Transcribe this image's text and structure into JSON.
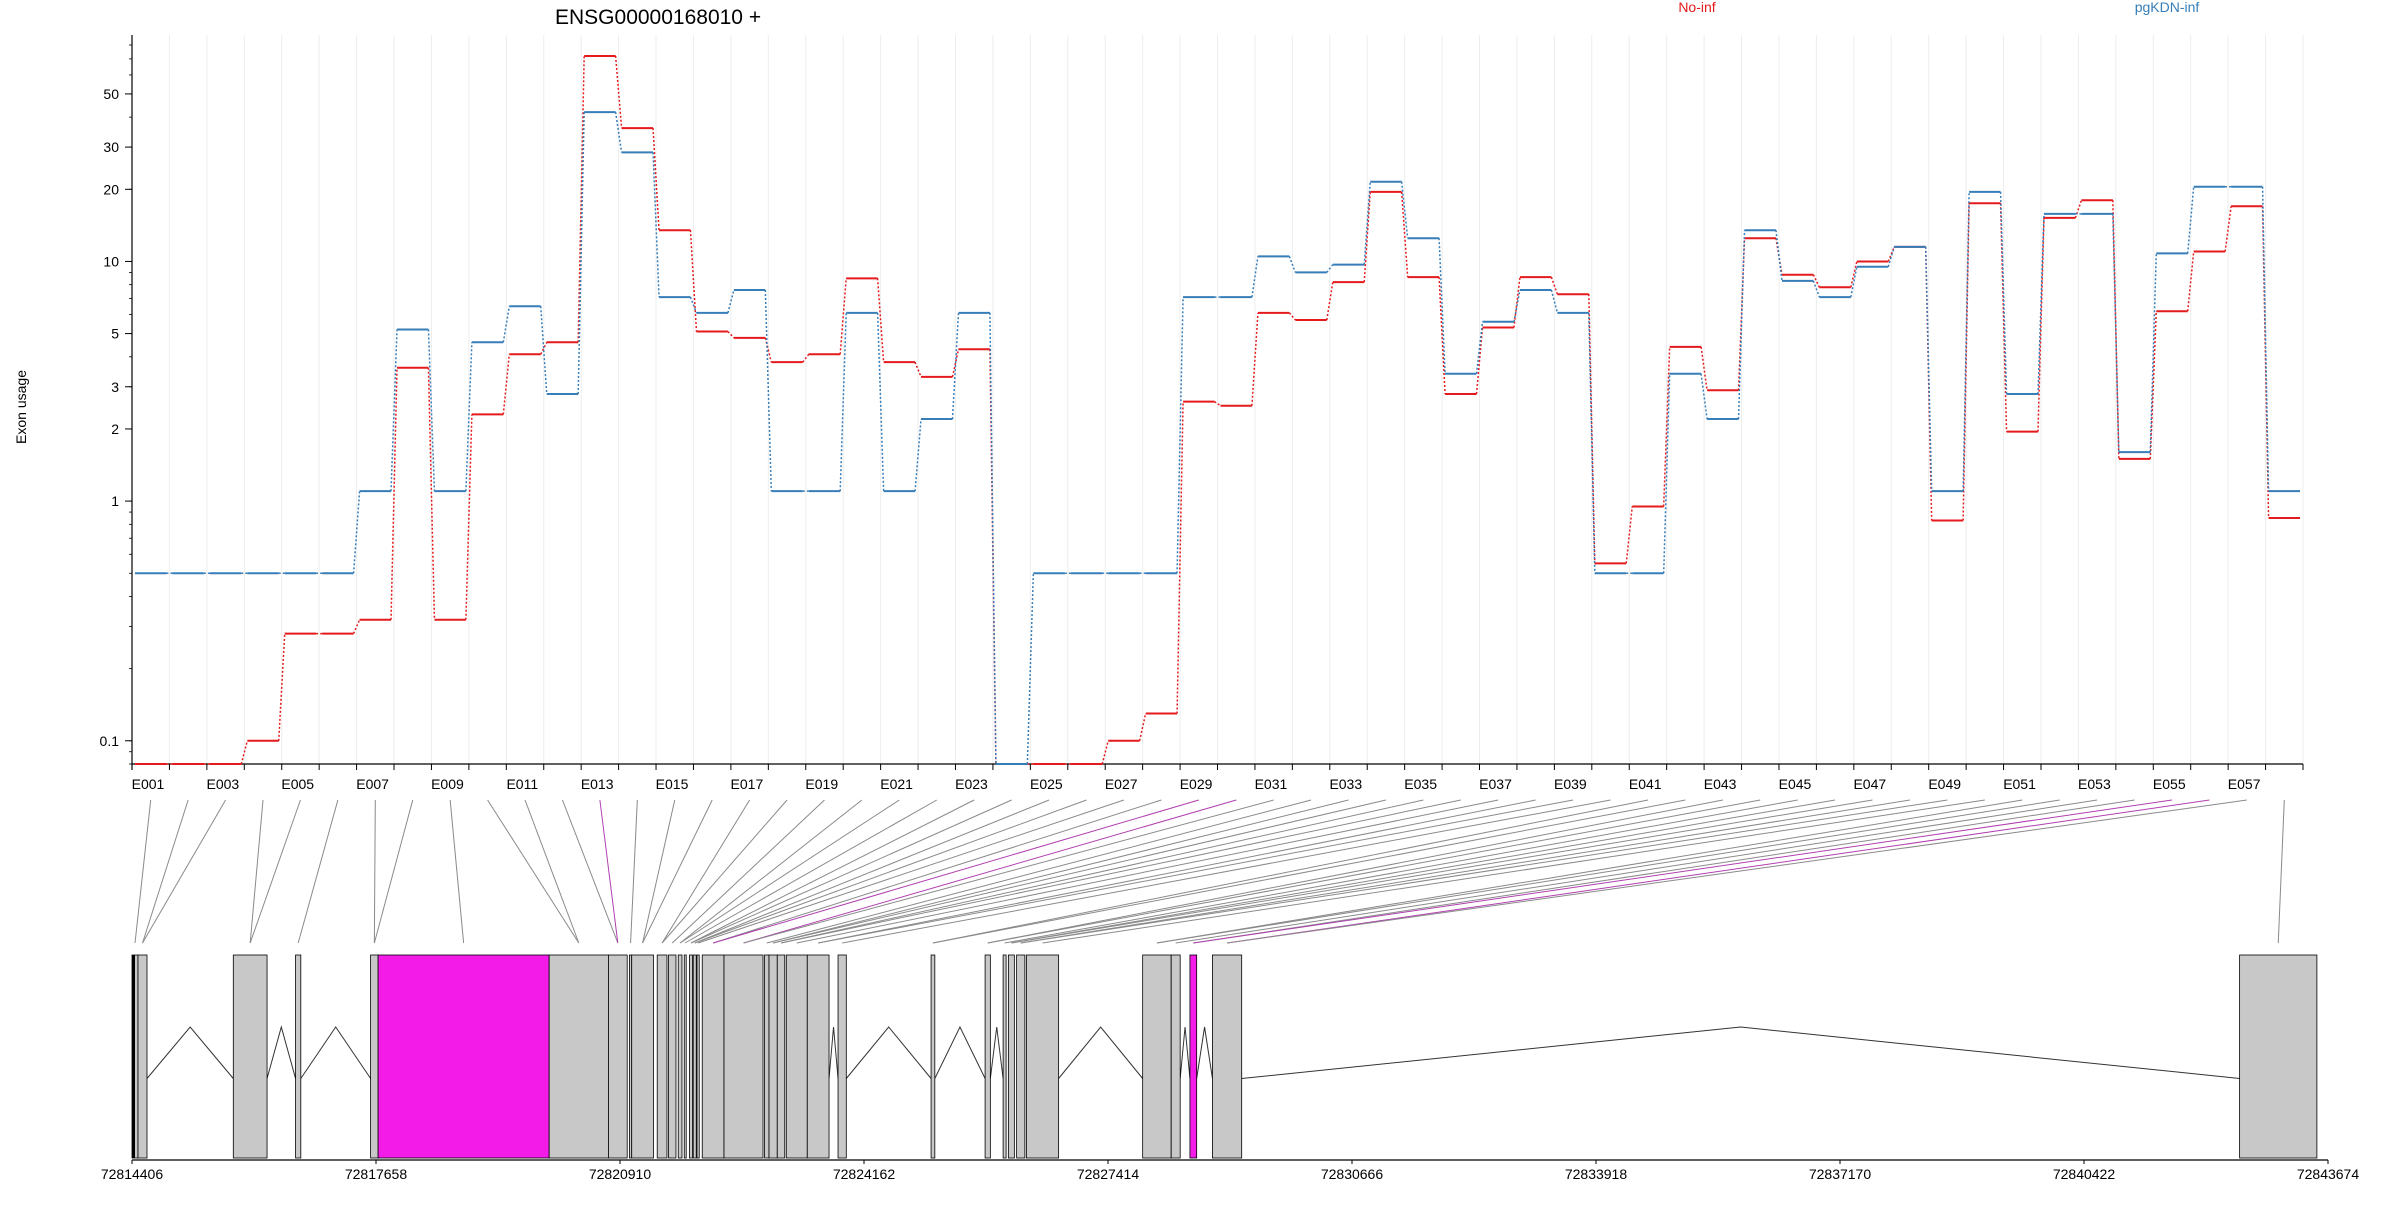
{
  "chart_data": {
    "type": "line",
    "title": "ENSG00000168010 +",
    "ylabel": "Exon usage",
    "xlabel": "",
    "yscale": "log",
    "ylim": [
      0.08,
      80
    ],
    "yticks": [
      0.1,
      1,
      2,
      3,
      5,
      10,
      20,
      30,
      50
    ],
    "legend_position": "top",
    "categories": [
      "E001",
      "E002",
      "E003",
      "E004",
      "E005",
      "E006",
      "E007",
      "E008",
      "E009",
      "E010",
      "E011",
      "E012",
      "E013",
      "E014",
      "E015",
      "E016",
      "E017",
      "E018",
      "E019",
      "E020",
      "E021",
      "E022",
      "E023",
      "E024",
      "E025",
      "E026",
      "E027",
      "E028",
      "E029",
      "E030",
      "E031",
      "E032",
      "E033",
      "E034",
      "E035",
      "E036",
      "E037",
      "E038",
      "E039",
      "E040",
      "E041",
      "E042",
      "E043",
      "E044",
      "E045",
      "E046",
      "E047",
      "E048",
      "E049",
      "E050",
      "E051",
      "E052",
      "E053",
      "E054",
      "E055",
      "E056",
      "E057",
      "E058"
    ],
    "tick_labels": [
      "E001",
      "E003",
      "E005",
      "E007",
      "E009",
      "E011",
      "E013",
      "E015",
      "E017",
      "E019",
      "E021",
      "E023",
      "E025",
      "E027",
      "E029",
      "E031",
      "E033",
      "E035",
      "E037",
      "E039",
      "E041",
      "E043",
      "E045",
      "E047",
      "E049",
      "E051",
      "E053",
      "E055",
      "E057"
    ],
    "series": [
      {
        "name": "No-inf",
        "color": "#e41a1c",
        "values": [
          0.08,
          0.08,
          0.08,
          0.1,
          0.28,
          0.28,
          0.32,
          3.6,
          0.32,
          2.3,
          4.1,
          4.6,
          72,
          36,
          13.5,
          5.1,
          4.8,
          3.8,
          4.1,
          8.5,
          3.8,
          3.3,
          4.3,
          0.08,
          0.08,
          0.08,
          0.1,
          0.13,
          2.6,
          2.5,
          6.1,
          5.7,
          8.2,
          19.5,
          8.6,
          2.8,
          5.3,
          8.6,
          7.3,
          0.55,
          0.95,
          4.4,
          2.9,
          12.5,
          8.8,
          7.8,
          10,
          11.5,
          0.83,
          17.5,
          1.95,
          15.2,
          18,
          1.5,
          6.2,
          11,
          17,
          0.85
        ]
      },
      {
        "name": "pgKDN-inf",
        "color": "#377eb8",
        "values": [
          0.5,
          0.5,
          0.5,
          0.5,
          0.5,
          0.5,
          1.1,
          5.2,
          1.1,
          4.6,
          6.5,
          2.8,
          42,
          28.5,
          7.1,
          6.1,
          7.6,
          1.1,
          1.1,
          6.1,
          1.1,
          2.2,
          6.1,
          0.08,
          0.5,
          0.5,
          0.5,
          0.5,
          7.1,
          7.1,
          10.5,
          9,
          9.7,
          21.5,
          12.5,
          3.4,
          5.6,
          7.6,
          6.1,
          0.5,
          0.5,
          3.4,
          2.2,
          13.5,
          8.3,
          7.1,
          9.5,
          11.5,
          1.1,
          19.5,
          2.8,
          15.8,
          15.8,
          1.6,
          10.8,
          20.5,
          20.5,
          1.1
        ]
      }
    ],
    "exon_highlights": [
      13,
      29,
      30,
      55,
      56
    ],
    "highlight_color": "#f21be8",
    "genomic_axis": {
      "labels": [
        "72814406",
        "72817658",
        "72820910",
        "72824162",
        "72827414",
        "72830666",
        "72833918",
        "72837170",
        "72840422",
        "72843674"
      ]
    }
  }
}
